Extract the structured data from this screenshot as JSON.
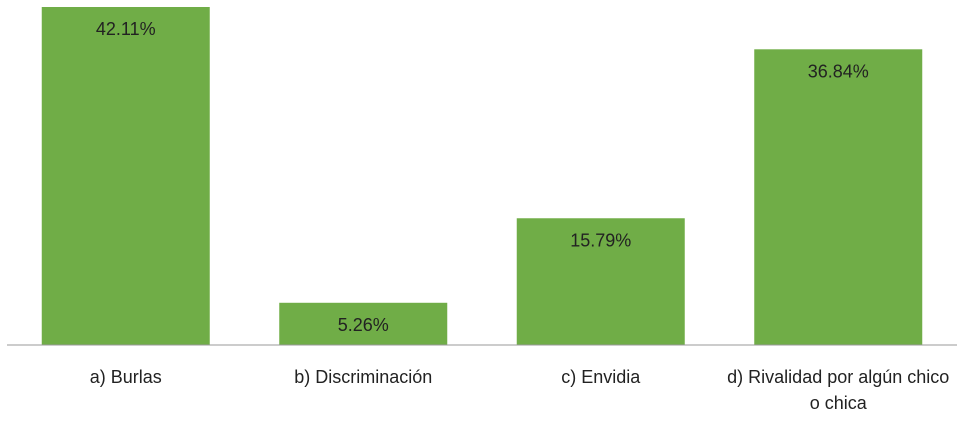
{
  "chart_data": {
    "type": "bar",
    "categories": [
      "a) Burlas",
      "b) Discriminación",
      "c) Envidia",
      "d) Rivalidad por algún chico o chica"
    ],
    "values": [
      42.11,
      5.26,
      15.79,
      36.84
    ],
    "value_labels": [
      "42.11%",
      "5.26%",
      "15.79%",
      "36.84%"
    ],
    "color": "#70ad47"
  }
}
